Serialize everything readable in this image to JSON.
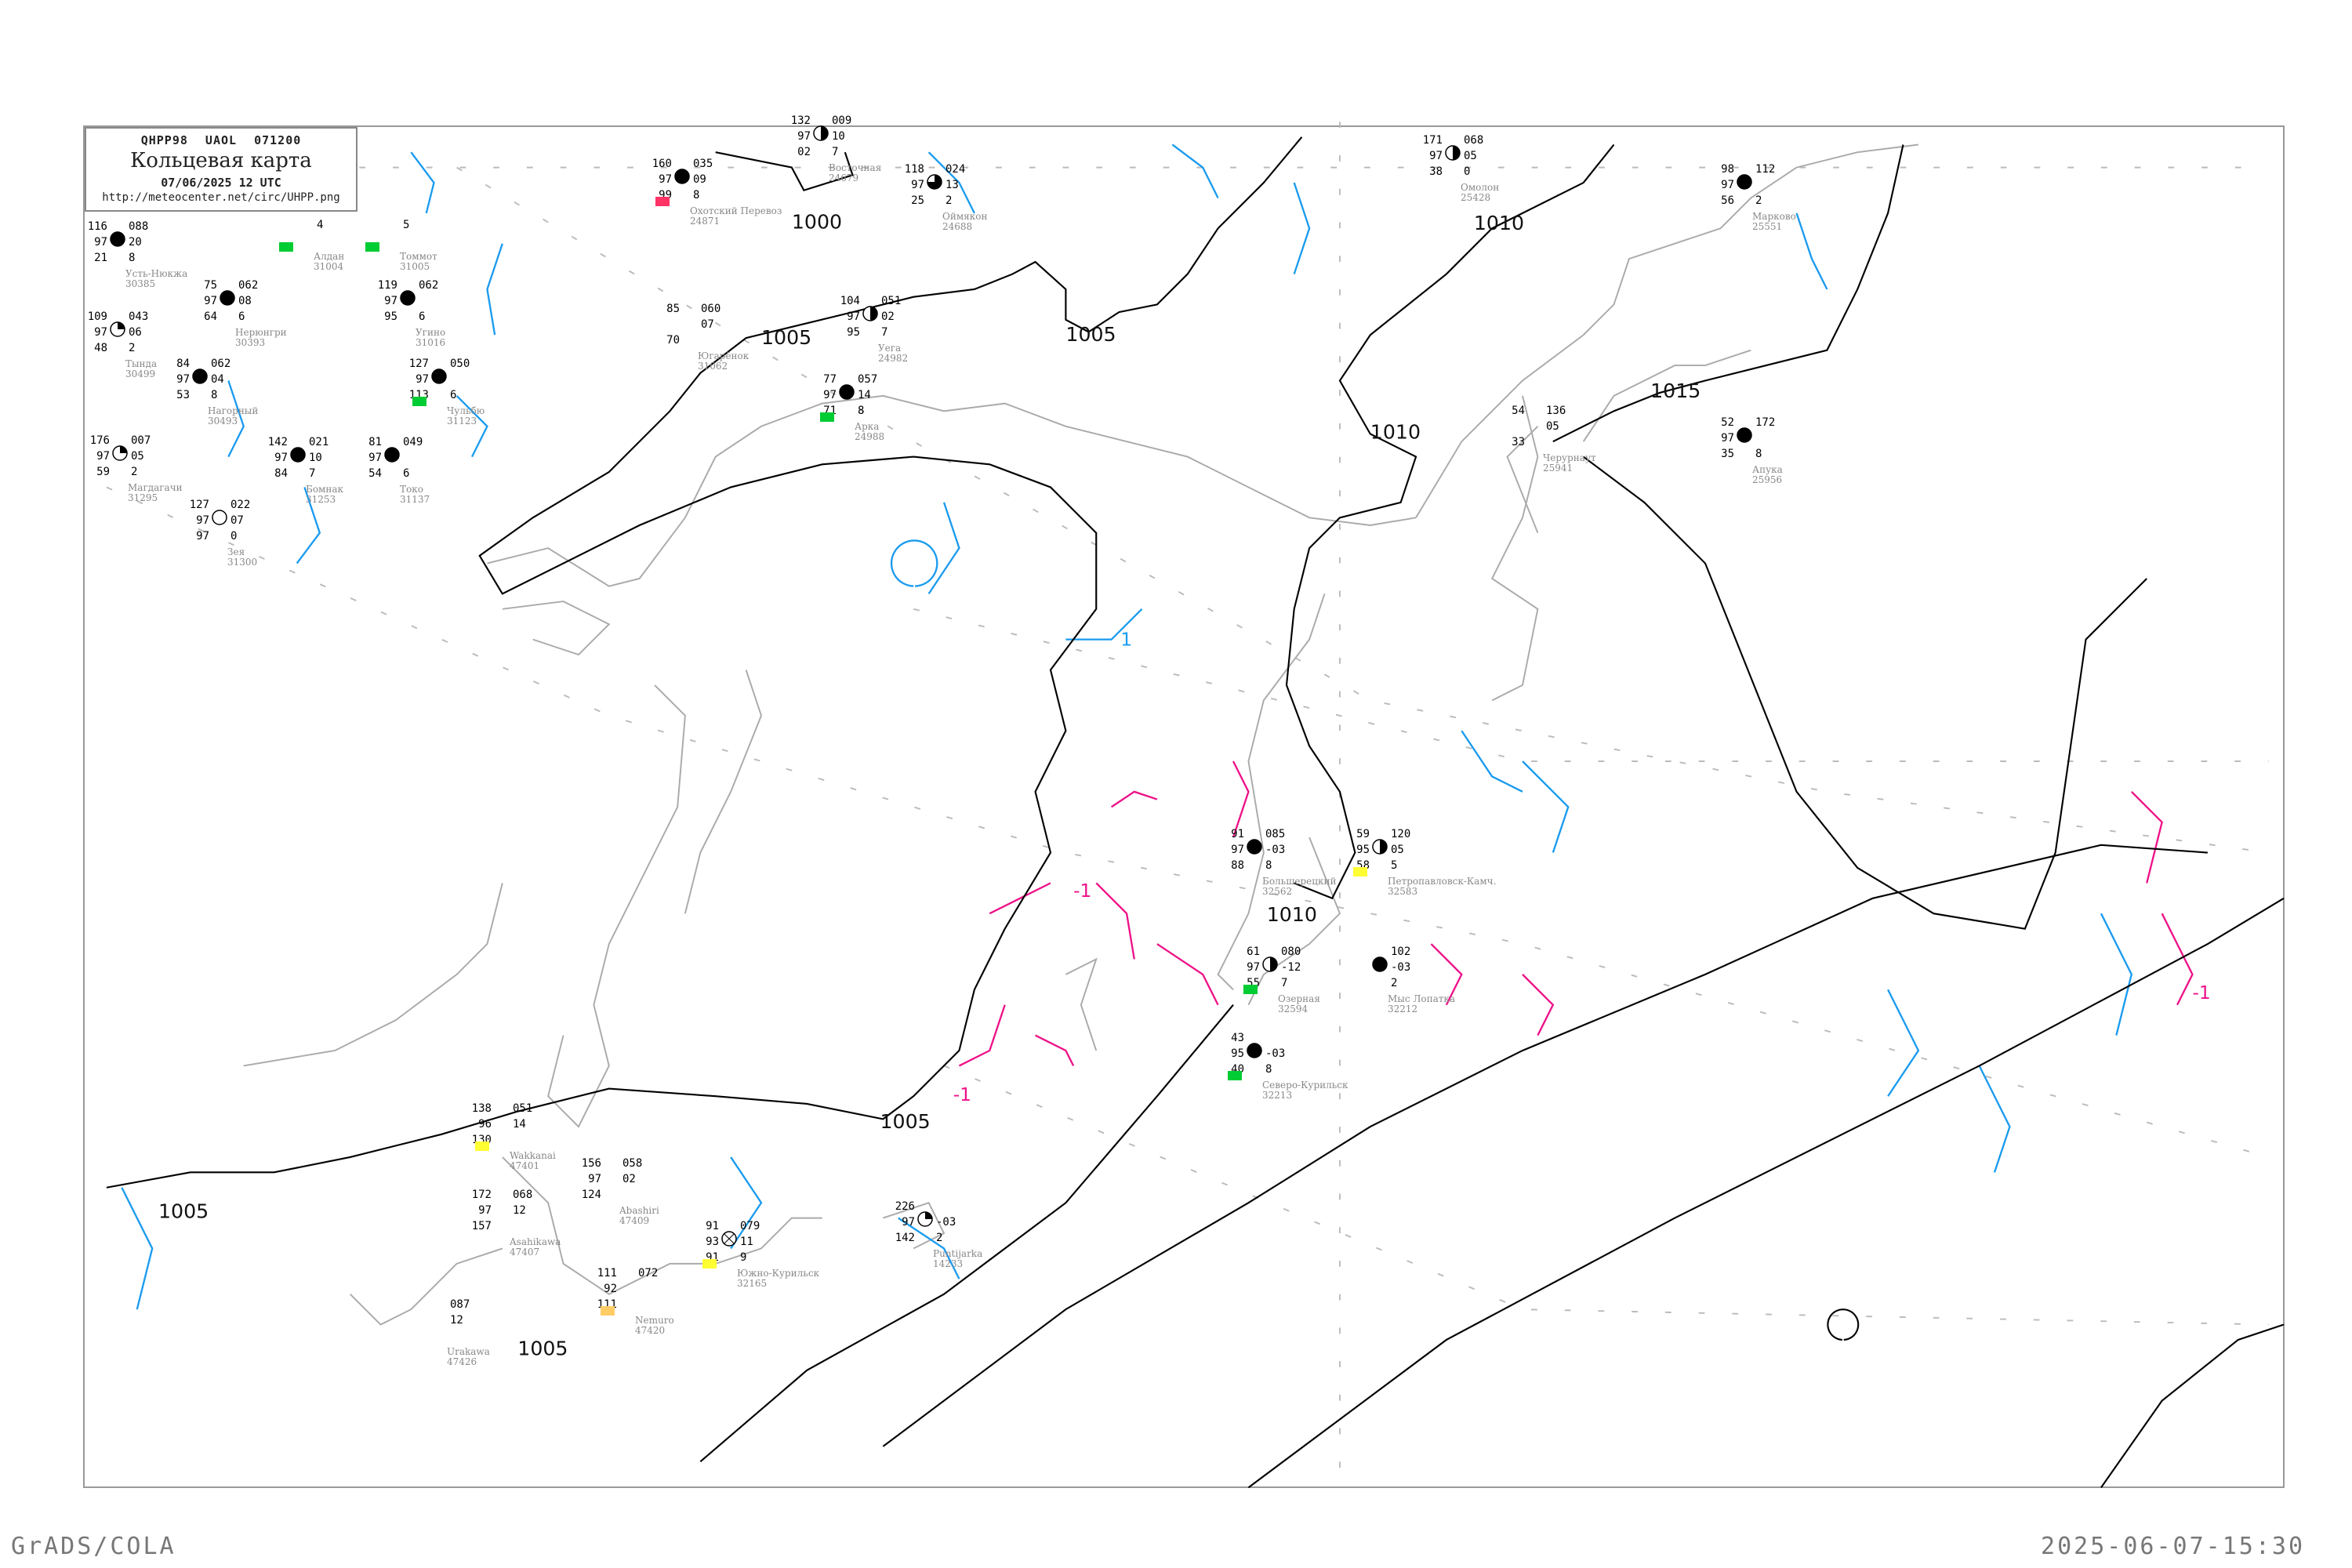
{
  "title": {
    "code": "QHPP98  UAOL  071200",
    "main": "Кольцевая карта",
    "date": "07/06/2025 12 UTC",
    "url": "http://meteocenter.net/circ/UHPP.png"
  },
  "footer": {
    "left": "GrADS/COLA",
    "right": "2025-06-07-15:30"
  },
  "colors": {
    "isobar": "#000000",
    "temp_positive": "#1a9bef",
    "temp_negative": "#ee1188",
    "coast": "#aaaaaa",
    "box_green": "#00cc33",
    "box_yellow": "#ffff33",
    "box_red": "#ff3366",
    "box_orange": "#ffcc66"
  },
  "isobar_labels": [
    "1000",
    "1005",
    "1005",
    "1010",
    "1010",
    "1015",
    "1010",
    "1005",
    "1005",
    "1005"
  ],
  "temp_labels": [
    "-1",
    "-1",
    "-1",
    "1"
  ],
  "stations": [
    {
      "name": "Усть-Нюкжа",
      "id": "30385",
      "l": [
        "116",
        "97",
        "21"
      ],
      "r": [
        "088",
        "20",
        "8"
      ],
      "sky": "full"
    },
    {
      "name": "Нерюнгри",
      "id": "30393",
      "l": [
        "75",
        "97",
        "64"
      ],
      "r": [
        "062",
        "08",
        "6"
      ],
      "sky": "full"
    },
    {
      "name": "Нагорный",
      "id": "30493",
      "l": [
        "84",
        "97",
        "53"
      ],
      "r": [
        "062",
        "04",
        "8"
      ],
      "sky": "full"
    },
    {
      "name": "Тында",
      "id": "30499",
      "l": [
        "109",
        "97",
        "48"
      ],
      "r": [
        "043",
        "06",
        "2"
      ],
      "sky": "quarter"
    },
    {
      "name": "Алдан",
      "id": "31004",
      "l": [
        "",
        "",
        ""
      ],
      "r": [
        "",
        "4",
        ""
      ],
      "sky": "none",
      "box": "green"
    },
    {
      "name": "Томмот",
      "id": "31005",
      "l": [
        "",
        "",
        ""
      ],
      "r": [
        "",
        "5",
        ""
      ],
      "sky": "none",
      "box": "green"
    },
    {
      "name": "Угино",
      "id": "31016",
      "l": [
        "119",
        "97",
        "95"
      ],
      "r": [
        "062",
        "",
        "6"
      ],
      "sky": "full"
    },
    {
      "name": "Чульбю",
      "id": "31123",
      "l": [
        "127",
        "97",
        "113"
      ],
      "r": [
        "050",
        "",
        "6"
      ],
      "sky": "full",
      "box": "green"
    },
    {
      "name": "Токо",
      "id": "31137",
      "l": [
        "81",
        "97",
        "54"
      ],
      "r": [
        "049",
        "",
        "6"
      ],
      "sky": "full"
    },
    {
      "name": "Магдагачи",
      "id": "31295",
      "l": [
        "176",
        "97",
        "59"
      ],
      "r": [
        "007",
        "05",
        "2"
      ],
      "sky": "quarter"
    },
    {
      "name": "Зея",
      "id": "31300",
      "l": [
        "127",
        "97",
        "97"
      ],
      "r": [
        "022",
        "07",
        "0"
      ],
      "sky": "empty"
    },
    {
      "name": "Бомнак",
      "id": "31253",
      "l": [
        "142",
        "97",
        "84"
      ],
      "r": [
        "021",
        "10",
        "7"
      ],
      "sky": "full"
    },
    {
      "name": "Охотский Перевоз",
      "id": "24871",
      "l": [
        "160",
        "97",
        "99"
      ],
      "r": [
        "035",
        "09",
        "8"
      ],
      "sky": "full",
      "box": "red"
    },
    {
      "name": "Восточная",
      "id": "24679",
      "l": [
        "132",
        "97",
        "02"
      ],
      "r": [
        "009",
        "10",
        "7"
      ],
      "sky": "half"
    },
    {
      "name": "Оймякон",
      "id": "24688",
      "l": [
        "118",
        "97",
        "25"
      ],
      "r": [
        "024",
        "13",
        "2"
      ],
      "sky": "threequarter"
    },
    {
      "name": "Югарёнок",
      "id": "31062",
      "l": [
        "85",
        "",
        "70"
      ],
      "r": [
        "060",
        "07",
        ""
      ],
      "sky": "none"
    },
    {
      "name": "Уега",
      "id": "24982",
      "l": [
        "104",
        "97",
        "95"
      ],
      "r": [
        "051",
        "02",
        "7"
      ],
      "sky": "half"
    },
    {
      "name": "Арка",
      "id": "24988",
      "l": [
        "77",
        "97",
        "71"
      ],
      "r": [
        "057",
        "14",
        "8"
      ],
      "sky": "full",
      "box": "green"
    },
    {
      "name": "Омолон",
      "id": "25428",
      "l": [
        "171",
        "97",
        "38"
      ],
      "r": [
        "068",
        "05",
        "0"
      ],
      "sky": "half"
    },
    {
      "name": "Марково",
      "id": "25551",
      "l": [
        "98",
        "97",
        "56"
      ],
      "r": [
        "112",
        "",
        "2"
      ],
      "sky": "full"
    },
    {
      "name": "Черурнаут",
      "id": "25941",
      "l": [
        "54",
        "",
        "33"
      ],
      "r": [
        "136",
        "05",
        ""
      ],
      "sky": "none"
    },
    {
      "name": "Апука",
      "id": "25956",
      "l": [
        "52",
        "97",
        "35"
      ],
      "r": [
        "172",
        "",
        "8"
      ],
      "sky": "full"
    },
    {
      "name": "Большерецкий",
      "id": "32562",
      "l": [
        "91",
        "97",
        "88"
      ],
      "r": [
        "085",
        "-03",
        "8"
      ],
      "sky": "full"
    },
    {
      "name": "Петропавловск-Камч.",
      "id": "32583",
      "l": [
        "59",
        "95",
        "58"
      ],
      "r": [
        "120",
        "05",
        "5"
      ],
      "sky": "half",
      "box": "yellow"
    },
    {
      "name": "Озерная",
      "id": "32594",
      "l": [
        "61",
        "97",
        "55"
      ],
      "r": [
        "080",
        "-12",
        "7"
      ],
      "sky": "half",
      "box": "green"
    },
    {
      "name": "Северо-Курильск",
      "id": "32213",
      "l": [
        "43",
        "95",
        "40"
      ],
      "r": [
        "",
        "-03",
        "8"
      ],
      "sky": "full",
      "box": "green"
    },
    {
      "name": "Мыс Лопатка",
      "id": "32212",
      "l": [
        "",
        "",
        ""
      ],
      "r": [
        "102",
        "-03",
        "2"
      ],
      "sky": "full"
    },
    {
      "name": "Puntijarka",
      "id": "14233",
      "l": [
        "226",
        "97",
        "142"
      ],
      "r": [
        "",
        "-03",
        "2"
      ],
      "sky": "quarter"
    },
    {
      "name": "Wakkanai",
      "id": "47401",
      "l": [
        "138",
        "96",
        "130"
      ],
      "r": [
        "051",
        "14",
        ""
      ],
      "sky": "none",
      "box": "yellow"
    },
    {
      "name": "Asahikawa",
      "id": "47407",
      "l": [
        "172",
        "97",
        "157"
      ],
      "r": [
        "068",
        "12",
        ""
      ],
      "sky": "none"
    },
    {
      "name": "Abashiri",
      "id": "47409",
      "l": [
        "156",
        "97",
        "124"
      ],
      "r": [
        "058",
        "02",
        ""
      ],
      "sky": "none"
    },
    {
      "name": "Южно-Курильск",
      "id": "32165",
      "l": [
        "91",
        "93",
        "91"
      ],
      "r": [
        "079",
        "11",
        "9"
      ],
      "sky": "obscured",
      "box": "yellow"
    },
    {
      "name": "Nemuro",
      "id": "47420",
      "l": [
        "111",
        "92",
        "111"
      ],
      "r": [
        "072",
        "",
        ""
      ],
      "sky": "none",
      "box": "orange"
    },
    {
      "name": "Urakawa",
      "id": "47426",
      "l": [
        "",
        "",
        ""
      ],
      "r": [
        "087",
        "12",
        ""
      ],
      "sky": "none"
    }
  ]
}
